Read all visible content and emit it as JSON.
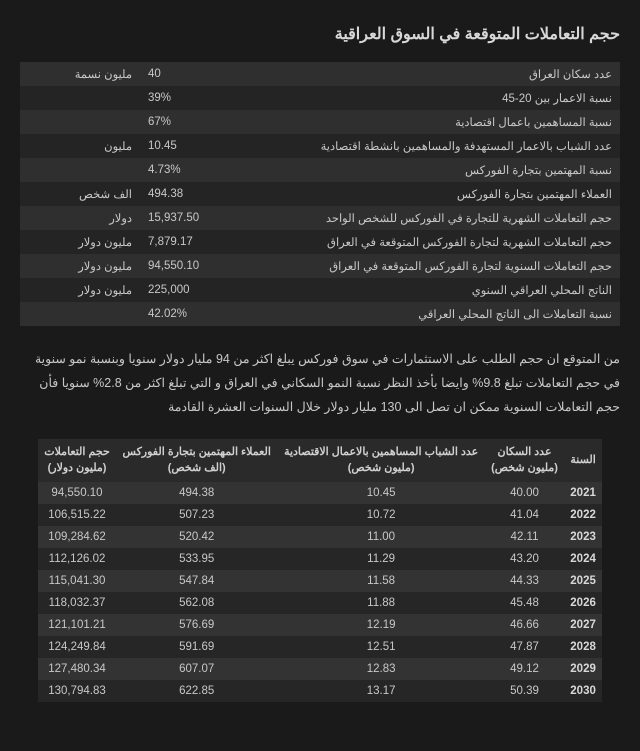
{
  "title": "حجم التعاملات المتوقعة في السوق العراقية",
  "stats": {
    "rows": [
      {
        "label": "عدد سكان العراق",
        "value": "40",
        "unit": "مليون نسمة"
      },
      {
        "label": "نسبة الاعمار بين 20-45",
        "value": "39%",
        "unit": ""
      },
      {
        "label": "نسبة المساهمين باعمال اقتصادية",
        "value": "67%",
        "unit": ""
      },
      {
        "label": "عدد الشباب بالاعمار المستهدفة والمساهمين بانشطة اقتصادية",
        "value": "10.45",
        "unit": "مليون"
      },
      {
        "label": "نسبة المهتمين بتجارة الفوركس",
        "value": "4.73%",
        "unit": ""
      },
      {
        "label": "العملاء المهتمين بتجارة الفوركس",
        "value": "494.38",
        "unit": "الف شخص"
      },
      {
        "label": "حجم التعاملات الشهرية للتجارة في الفوركس للشخص الواحد",
        "value": "15,937.50",
        "unit": "دولار"
      },
      {
        "label": "حجم التعاملات الشهرية لتجارة الفوركس المتوقعة في العراق",
        "value": "7,879.17",
        "unit": "مليون دولار"
      },
      {
        "label": "حجم التعاملات السنوية لتجارة الفوركس المتوقعة في العراق",
        "value": "94,550.10",
        "unit": "مليون دولار"
      },
      {
        "label": "الناتج المحلي العراقي السنوي",
        "value": "225,000",
        "unit": "مليون دولار"
      },
      {
        "label": "نسبة التعاملات الى الناتج المحلي العراقي",
        "value": "42.02%",
        "unit": ""
      }
    ]
  },
  "paragraph": "من المتوقع ان حجم الطلب على الاستثمارات في سوق فوركس يبلغ اكثر من 94 مليار دولار سنويا وبنسبة نمو سنوية في حجم التعاملات تبلغ 9.8%  وايضا بأخذ النظر نسبة النمو السكاني في العراق و التي تبلغ اكثر من 2.8% سنويا فأن حجم التعاملات السنوية ممكن ان تصل الى 130 مليار دولار خلال السنوات العشرة القادمة",
  "projection": {
    "headers": {
      "year": "السنة",
      "pop": "عدد السكان",
      "pop_sub": "(مليون شخص)",
      "youth": "عدد الشباب المساهمين بالاعمال الاقتصادية",
      "youth_sub": "(مليون شخص)",
      "clients": "العملاء المهتمين بتجارة الفوركس",
      "clients_sub": "(الف شخص)",
      "volume": "حجم التعاملات",
      "volume_sub": "(مليون دولار)"
    },
    "rows": [
      {
        "year": "2021",
        "pop": "40.00",
        "youth": "10.45",
        "clients": "494.38",
        "volume": "94,550.10"
      },
      {
        "year": "2022",
        "pop": "41.04",
        "youth": "10.72",
        "clients": "507.23",
        "volume": "106,515.22"
      },
      {
        "year": "2023",
        "pop": "42.11",
        "youth": "11.00",
        "clients": "520.42",
        "volume": "109,284.62"
      },
      {
        "year": "2024",
        "pop": "43.20",
        "youth": "11.29",
        "clients": "533.95",
        "volume": "112,126.02"
      },
      {
        "year": "2025",
        "pop": "44.33",
        "youth": "11.58",
        "clients": "547.84",
        "volume": "115,041.30"
      },
      {
        "year": "2026",
        "pop": "45.48",
        "youth": "11.88",
        "clients": "562.08",
        "volume": "118,032.37"
      },
      {
        "year": "2027",
        "pop": "46.66",
        "youth": "12.19",
        "clients": "576.69",
        "volume": "121,101.21"
      },
      {
        "year": "2028",
        "pop": "47.87",
        "youth": "12.51",
        "clients": "591.69",
        "volume": "124,249.84"
      },
      {
        "year": "2029",
        "pop": "49.12",
        "youth": "12.83",
        "clients": "607.07",
        "volume": "127,480.34"
      },
      {
        "year": "2030",
        "pop": "50.39",
        "youth": "13.17",
        "clients": "622.85",
        "volume": "130,794.83"
      }
    ]
  },
  "colors": {
    "page_bg": "#1a1a1a",
    "row_odd": "#2f2f2f",
    "row_even": "#242424",
    "text": "#c8c8c8"
  }
}
